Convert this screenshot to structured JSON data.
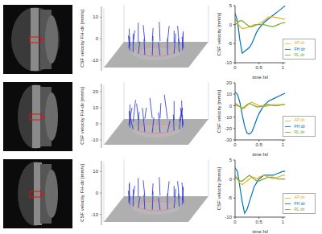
{
  "chart_data": [
    {
      "type": "quiver3d",
      "ylabel": "CSF velocity FH-dir [mm/s]",
      "ylim": [
        -15,
        15
      ],
      "yticks": [
        -10,
        0,
        10
      ]
    },
    {
      "type": "line",
      "xlabel": "time [s]",
      "ylabel": "CSF velocity [mm/s]",
      "xlim": [
        0,
        1.05
      ],
      "xticks": [
        0,
        0.5,
        1
      ],
      "ylim": [
        -10,
        5
      ],
      "yticks": [
        -10,
        -5,
        0,
        5
      ],
      "legend": "lower right",
      "x": [
        0,
        0.05,
        0.1,
        0.15,
        0.2,
        0.25,
        0.3,
        0.35,
        0.4,
        0.45,
        0.5,
        0.6,
        0.7,
        0.8,
        0.9,
        1.0,
        1.05
      ],
      "series": [
        {
          "name": "FH dir",
          "color": "#0072BD",
          "values": [
            3,
            1,
            -4,
            -7.5,
            -7,
            -6.5,
            -6,
            -5,
            -3.5,
            -2,
            -1,
            0.5,
            1.5,
            2.5,
            3.5,
            4.5,
            5
          ]
        },
        {
          "name": "AP dir",
          "color": "#EDB120",
          "values": [
            1.5,
            0.5,
            -0.5,
            -1,
            -1,
            -0.8,
            -0.5,
            -0.3,
            0,
            0,
            0.2,
            1,
            2,
            2,
            1.8,
            1.5,
            1.5
          ]
        },
        {
          "name": "RL dir",
          "color": "#77AC30",
          "values": [
            0,
            0.5,
            1,
            1,
            0.5,
            0,
            -0.5,
            -0.5,
            -0.3,
            0,
            0,
            0,
            -0.3,
            -0.5,
            0,
            0.5,
            0.5
          ]
        }
      ]
    },
    {
      "type": "quiver3d",
      "ylabel": "CSF velocity FH-dir [mm/s]",
      "ylim": [
        -15,
        25
      ],
      "yticks": [
        -10,
        0,
        10,
        20
      ]
    },
    {
      "type": "line",
      "xlabel": "time [s]",
      "ylabel": "CSF velocity [mm/s]",
      "xlim": [
        0,
        1.05
      ],
      "xticks": [
        0,
        0.5,
        1
      ],
      "ylim": [
        -30,
        20
      ],
      "yticks": [
        -30,
        -20,
        -10,
        0,
        10,
        20
      ],
      "legend": "lower right",
      "x": [
        0,
        0.05,
        0.1,
        0.15,
        0.2,
        0.25,
        0.3,
        0.35,
        0.4,
        0.45,
        0.5,
        0.6,
        0.7,
        0.8,
        0.9,
        1.0,
        1.05
      ],
      "series": [
        {
          "name": "FH dir",
          "color": "#0072BD",
          "values": [
            12,
            10,
            3,
            -8,
            -18,
            -24,
            -25,
            -23,
            -18,
            -12,
            -7,
            0,
            4,
            6,
            8,
            10,
            11
          ]
        },
        {
          "name": "AP dir",
          "color": "#EDB120",
          "values": [
            2,
            1,
            -1,
            -3,
            -2,
            0,
            2,
            3,
            2,
            1,
            0,
            -1,
            0,
            1,
            1,
            1,
            1
          ]
        },
        {
          "name": "RL dir",
          "color": "#77AC30",
          "values": [
            1,
            0,
            -1,
            -2,
            -1,
            1,
            2,
            1,
            0,
            -1,
            -1,
            0,
            1,
            0,
            0,
            1,
            1
          ]
        }
      ]
    },
    {
      "type": "quiver3d",
      "ylabel": "CSF velocity FH-dir [mm/s]",
      "ylim": [
        -15,
        15
      ],
      "yticks": [
        -10,
        0,
        10
      ]
    },
    {
      "type": "line",
      "xlabel": "time [s]",
      "ylabel": "CSF velocity [mm/s]",
      "xlim": [
        0,
        1.05
      ],
      "xticks": [
        0,
        0.5,
        1
      ],
      "ylim": [
        -10,
        5
      ],
      "yticks": [
        -10,
        -5,
        0,
        5
      ],
      "legend": "lower right",
      "x": [
        0,
        0.05,
        0.1,
        0.15,
        0.2,
        0.25,
        0.3,
        0.35,
        0.4,
        0.45,
        0.5,
        0.6,
        0.7,
        0.8,
        0.9,
        1.0,
        1.05
      ],
      "series": [
        {
          "name": "FH dir",
          "color": "#0072BD",
          "values": [
            3,
            2,
            -2,
            -6,
            -9,
            -8,
            -6,
            -4,
            -2,
            -1,
            0,
            1,
            1,
            1,
            1.5,
            2,
            2
          ]
        },
        {
          "name": "AP dir",
          "color": "#EDB120",
          "values": [
            1,
            0,
            -1,
            -1.5,
            -1,
            -0.5,
            0,
            0.5,
            0.5,
            0,
            0.5,
            1,
            0.5,
            0,
            0.5,
            1,
            1
          ]
        },
        {
          "name": "RL dir",
          "color": "#77AC30",
          "values": [
            0.5,
            0,
            -0.5,
            -0.5,
            0,
            0.5,
            1,
            0.5,
            0,
            -0.5,
            -0.5,
            0,
            0.5,
            0.5,
            0,
            0,
            0
          ]
        }
      ]
    }
  ]
}
